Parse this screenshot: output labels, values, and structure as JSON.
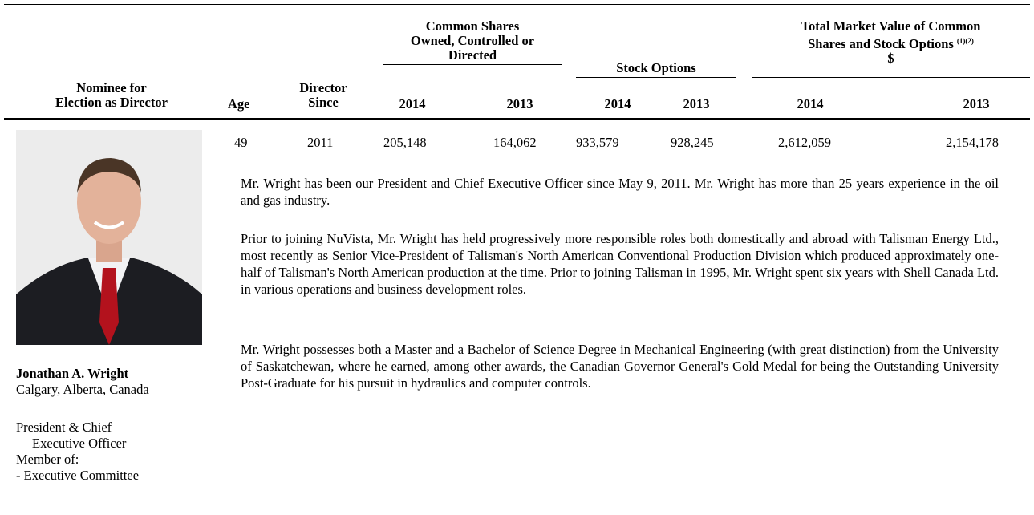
{
  "table": {
    "group_headers": {
      "common_shares": [
        "Common Shares",
        "Owned, Controlled or",
        "Directed"
      ],
      "stock_options": "Stock Options",
      "market_value": {
        "lines": [
          "Total Market Value of Common",
          "Shares and Stock Options"
        ],
        "footnotes": "(1)(2)",
        "unit": "$"
      }
    },
    "column_headers": {
      "nominee": [
        "Nominee for",
        "Election as Director"
      ],
      "age": "Age",
      "director_since": [
        "Director",
        "Since"
      ],
      "years": [
        "2014",
        "2013",
        "2014",
        "2013",
        "2014",
        "2013"
      ]
    },
    "row": [
      "49",
      "2011",
      "205,148",
      "164,062",
      "933,579",
      "928,245",
      "2,612,059",
      "2,154,178"
    ]
  },
  "nominee": {
    "name": "Jonathan A. Wright",
    "location": "Calgary, Alberta, Canada",
    "title": [
      "President & Chief",
      "Executive Officer"
    ],
    "membership": [
      "Member of:",
      "- Executive Committee"
    ]
  },
  "biography": [
    "Mr. Wright has been our President and Chief Executive Officer since May 9, 2011. Mr. Wright has more than 25 years experience in the oil and gas industry.",
    "Prior to joining NuVista, Mr. Wright has held progressively more responsible roles both domestically and abroad with Talisman Energy Ltd., most recently as Senior Vice-President of Talisman's North American Conventional Production Division which produced approximately one-half of Talisman's North American production at the time. Prior to joining Talisman in 1995, Mr. Wright spent six years with Shell Canada Ltd. in various operations and business development roles.",
    "Mr. Wright possesses both a Master and a Bachelor of Science Degree in Mechanical Engineering (with great distinction) from the University of Saskatchewan, where he earned, among other awards, the Canadian Governor General's Gold Medal for being the Outstanding University Post-Graduate for his pursuit in hydraulics and computer controls."
  ]
}
